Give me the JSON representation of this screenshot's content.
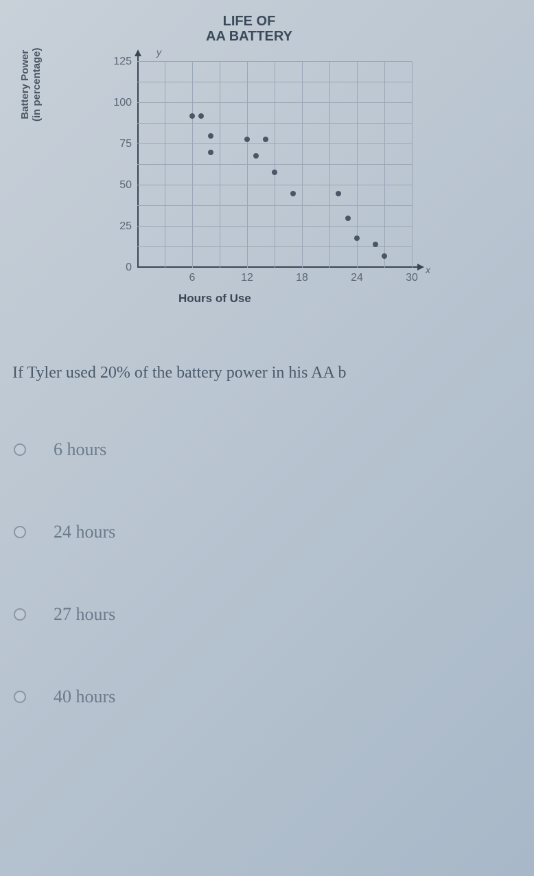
{
  "chart": {
    "type": "scatter",
    "title_line1": "LIFE OF",
    "title_line2": "AA BATTERY",
    "y_axis_letter": "y",
    "x_axis_letter": "x",
    "y_label_1": "Battery Power",
    "y_label_2": "(in percentage)",
    "x_label": "Hours of Use",
    "y_ticks": [
      {
        "value": 0,
        "label": "0"
      },
      {
        "value": 25,
        "label": "25"
      },
      {
        "value": 50,
        "label": "50"
      },
      {
        "value": 75,
        "label": "75"
      },
      {
        "value": 100,
        "label": "100"
      },
      {
        "value": 125,
        "label": "125"
      }
    ],
    "x_ticks": [
      {
        "value": 6,
        "label": "6"
      },
      {
        "value": 12,
        "label": "12"
      },
      {
        "value": 18,
        "label": "18"
      },
      {
        "value": 24,
        "label": "24"
      },
      {
        "value": 30,
        "label": "30"
      }
    ],
    "x_max": 30,
    "y_max": 125,
    "grid_x_step": 3,
    "grid_y_step": 12.5,
    "grid_color": "#9aa6b6",
    "axis_color": "#3a4656",
    "point_color": "#4a5666",
    "points": [
      {
        "x": 6,
        "y": 92
      },
      {
        "x": 7,
        "y": 92
      },
      {
        "x": 8,
        "y": 80
      },
      {
        "x": 8,
        "y": 70
      },
      {
        "x": 12,
        "y": 78
      },
      {
        "x": 14,
        "y": 78
      },
      {
        "x": 13,
        "y": 68
      },
      {
        "x": 15,
        "y": 58
      },
      {
        "x": 17,
        "y": 45
      },
      {
        "x": 22,
        "y": 45
      },
      {
        "x": 23,
        "y": 30
      },
      {
        "x": 24,
        "y": 18
      },
      {
        "x": 26,
        "y": 14
      },
      {
        "x": 27,
        "y": 7
      }
    ]
  },
  "question": {
    "text": "If Tyler used 20% of the battery power in his AA b"
  },
  "options": [
    {
      "label": "6 hours"
    },
    {
      "label": "24 hours"
    },
    {
      "label": "27 hours"
    },
    {
      "label": "40 hours"
    }
  ]
}
